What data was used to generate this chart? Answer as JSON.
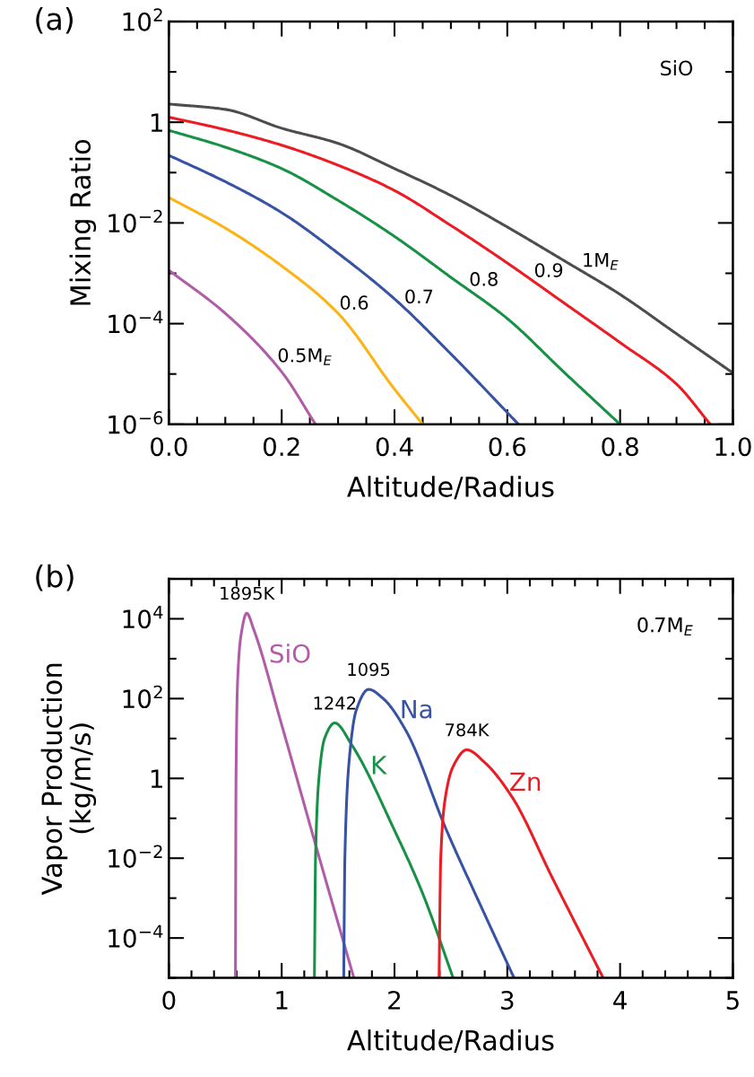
{
  "chart_data": [
    {
      "type": "line",
      "log": "y",
      "xlabel": "Altitude/Radius",
      "ylabel": "Mixing Ratio",
      "annotations": [
        "(a)",
        "SiO"
      ],
      "xlim": [
        0,
        1
      ],
      "xticks": [
        {
          "value": 0,
          "label": "0.0"
        },
        {
          "value": 0.05,
          "label": null
        },
        {
          "value": 0.1,
          "label": null
        },
        {
          "value": 0.15,
          "label": null
        },
        {
          "value": 0.2,
          "label": "0.2"
        },
        {
          "value": 0.25,
          "label": null
        },
        {
          "value": 0.3,
          "label": null
        },
        {
          "value": 0.35,
          "label": null
        },
        {
          "value": 0.4,
          "label": "0.4"
        },
        {
          "value": 0.45,
          "label": null
        },
        {
          "value": 0.5,
          "label": null
        },
        {
          "value": 0.55,
          "label": null
        },
        {
          "value": 0.6,
          "label": "0.6"
        },
        {
          "value": 0.65,
          "label": null
        },
        {
          "value": 0.7,
          "label": null
        },
        {
          "value": 0.75,
          "label": null
        },
        {
          "value": 0.8,
          "label": "0.8"
        },
        {
          "value": 0.85,
          "label": null
        },
        {
          "value": 0.9,
          "label": null
        },
        {
          "value": 0.95,
          "label": null
        },
        {
          "value": 1,
          "label": "1.0"
        }
      ],
      "ylim": [
        1e-06,
        100
      ],
      "yticks": [
        {
          "value": 1e-06,
          "label": "10$^{−6}$"
        },
        {
          "value": 1e-05,
          "label": null
        },
        {
          "value": 0.0001,
          "label": "10$^{−4}$"
        },
        {
          "value": 0.001,
          "label": null
        },
        {
          "value": 0.01,
          "label": "10$^{−2}$"
        },
        {
          "value": 0.1,
          "label": null
        },
        {
          "value": 1,
          "label": "1"
        },
        {
          "value": 10,
          "label": null
        },
        {
          "value": 100,
          "label": "10$^{2}$"
        }
      ],
      "series": [
        {
          "name": "1M$_{E}$",
          "color": "#4d4d4d",
          "x": [
            0,
            0.1,
            0.2,
            0.3,
            0.4,
            0.5,
            0.6,
            0.7,
            0.8,
            0.9,
            1.0
          ],
          "values": [
            2.3,
            1.8,
            0.76,
            0.38,
            0.12,
            0.035,
            0.0083,
            0.0018,
            0.00038,
            6.3e-05,
            1.05e-05
          ]
        },
        {
          "name": "0.9",
          "color": "#ec1c24",
          "x": [
            0,
            0.1,
            0.2,
            0.3,
            0.4,
            0.5,
            0.6,
            0.7,
            0.8,
            0.9,
            0.96
          ],
          "values": [
            1.26,
            0.71,
            0.35,
            0.14,
            0.044,
            0.0089,
            0.0016,
            0.00026,
            4.2e-05,
            6.3e-06,
            1e-06
          ]
        },
        {
          "name": "0.8",
          "color": "#179146",
          "x": [
            0,
            0.1,
            0.2,
            0.3,
            0.4,
            0.5,
            0.6,
            0.7,
            0.8
          ],
          "values": [
            0.69,
            0.32,
            0.12,
            0.028,
            0.0054,
            0.00083,
            0.000126,
            1.1e-05,
            1e-06
          ]
        },
        {
          "name": "0.7",
          "color": "#3853a4",
          "x": [
            0,
            0.1,
            0.2,
            0.3,
            0.4,
            0.5,
            0.62
          ],
          "values": [
            0.22,
            0.066,
            0.016,
            0.0025,
            0.00031,
            2.5e-05,
            1e-06
          ]
        },
        {
          "name": "0.6",
          "color": "#fbb316",
          "x": [
            0,
            0.1,
            0.2,
            0.3,
            0.4,
            0.45
          ],
          "values": [
            0.032,
            0.0079,
            0.0014,
            0.00016,
            5e-06,
            1e-06
          ]
        },
        {
          "name": "0.5M$_{E}$",
          "color": "#b25ba7",
          "x": [
            0,
            0.1,
            0.2,
            0.26
          ],
          "values": [
            0.00115,
            0.00016,
            1.1e-05,
            1e-06
          ]
        }
      ]
    },
    {
      "type": "line",
      "log": "y",
      "xlabel": "Altitude/Radius",
      "ylabel": "Vapor Production\n(kg/m/s)",
      "annotations": [
        "(b)",
        "0.7M$_{E}$",
        {
          "text": "1895K",
          "x": 0.69,
          "y": 13800
        },
        {
          "text": "1242",
          "x": 1.47,
          "y": 24.5
        },
        {
          "text": "1095",
          "x": 1.77,
          "y": 170
        },
        {
          "text": "784K",
          "x": 2.64,
          "y": 5.2
        }
      ],
      "xlim": [
        0,
        5
      ],
      "xticks": [
        {
          "value": 0,
          "label": "0"
        },
        {
          "value": 0.2,
          "label": null
        },
        {
          "value": 0.4,
          "label": null
        },
        {
          "value": 0.6,
          "label": null
        },
        {
          "value": 0.8,
          "label": null
        },
        {
          "value": 1,
          "label": "1"
        },
        {
          "value": 1.2,
          "label": null
        },
        {
          "value": 1.4,
          "label": null
        },
        {
          "value": 1.6,
          "label": null
        },
        {
          "value": 1.8,
          "label": null
        },
        {
          "value": 2,
          "label": "2"
        },
        {
          "value": 2.2,
          "label": null
        },
        {
          "value": 2.4,
          "label": null
        },
        {
          "value": 2.6,
          "label": null
        },
        {
          "value": 2.8,
          "label": null
        },
        {
          "value": 3,
          "label": "3"
        },
        {
          "value": 3.2,
          "label": null
        },
        {
          "value": 3.4,
          "label": null
        },
        {
          "value": 3.6,
          "label": null
        },
        {
          "value": 3.8,
          "label": null
        },
        {
          "value": 4,
          "label": "4"
        },
        {
          "value": 4.2,
          "label": null
        },
        {
          "value": 4.4,
          "label": null
        },
        {
          "value": 4.6,
          "label": null
        },
        {
          "value": 4.8,
          "label": null
        },
        {
          "value": 5,
          "label": "5"
        }
      ],
      "ylim": [
        1e-05,
        100000.0
      ],
      "yticks": [
        {
          "value": 1e-05,
          "label": null
        },
        {
          "value": 0.0001,
          "label": "10$^{−4}$"
        },
        {
          "value": 0.001,
          "label": null
        },
        {
          "value": 0.01,
          "label": "10$^{−2}$"
        },
        {
          "value": 0.1,
          "label": null
        },
        {
          "value": 1,
          "label": "1"
        },
        {
          "value": 10,
          "label": null
        },
        {
          "value": 100,
          "label": "10$^{2}$"
        },
        {
          "value": 1000,
          "label": null
        },
        {
          "value": 10000,
          "label": "10$^{4}$"
        },
        {
          "value": 100000,
          "label": null
        }
      ],
      "series": [
        {
          "name": "SiO",
          "color": "#b25ba7",
          "x": [
            0.59,
            0.595,
            0.61,
            0.64,
            0.69,
            0.75,
            1.0,
            1.3,
            1.64
          ],
          "values": [
            1e-05,
            1,
            316,
            4000,
            13800,
            5600,
            22,
            0.022,
            1e-05
          ]
        },
        {
          "name": "K",
          "color": "#179146",
          "x": [
            1.29,
            1.3,
            1.33,
            1.38,
            1.47,
            1.62,
            2.0,
            2.25,
            2.52
          ],
          "values": [
            1e-05,
            0.01,
            1,
            10,
            24.5,
            7,
            0.05,
            0.0013,
            1e-05
          ]
        },
        {
          "name": "Na",
          "color": "#3853a4",
          "x": [
            1.55,
            1.56,
            1.6,
            1.66,
            1.77,
            1.9,
            2.1,
            2.46,
            2.75,
            3.06
          ],
          "values": [
            1e-05,
            0.01,
            3.2,
            50,
            170,
            100,
            16,
            0.051,
            0.00079,
            1e-05
          ]
        },
        {
          "name": "Zn",
          "color": "#ec1c24",
          "x": [
            2.395,
            2.41,
            2.45,
            2.52,
            2.64,
            2.8,
            3.04,
            3.4,
            3.85
          ],
          "values": [
            1e-05,
            0.01,
            0.32,
            2.0,
            5.2,
            2.5,
            0.35,
            0.0032,
            1e-05
          ]
        }
      ]
    }
  ]
}
